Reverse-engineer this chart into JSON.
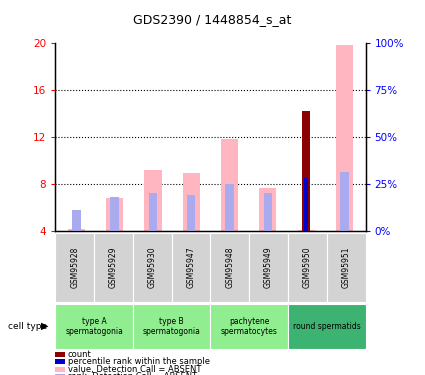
{
  "title": "GDS2390 / 1448854_s_at",
  "samples": [
    "GSM95928",
    "GSM95929",
    "GSM95930",
    "GSM95947",
    "GSM95948",
    "GSM95949",
    "GSM95950",
    "GSM95951"
  ],
  "absent_value_bars": [
    4.1,
    6.8,
    9.2,
    8.9,
    11.8,
    7.6,
    4.05,
    19.8
  ],
  "absent_rank_bars": [
    5.8,
    6.9,
    7.2,
    7.0,
    8.0,
    7.2,
    4.05,
    9.0
  ],
  "count_bars": [
    0.0,
    0.0,
    0.0,
    0.0,
    0.0,
    0.0,
    14.2,
    0.0
  ],
  "percentile_bars": [
    0.0,
    0.0,
    0.0,
    0.0,
    0.0,
    0.0,
    8.5,
    0.0
  ],
  "ylim_left": [
    4,
    20
  ],
  "ylim_right": [
    0,
    100
  ],
  "yticks_left": [
    4,
    8,
    12,
    16,
    20
  ],
  "yticks_right": [
    0,
    25,
    50,
    75,
    100
  ],
  "ytick_labels_right": [
    "0%",
    "25%",
    "50%",
    "75%",
    "100%"
  ],
  "absent_value_color": "#FFB6C1",
  "absent_rank_color": "#AAAAEE",
  "count_color": "#8B0000",
  "percentile_color": "#0000CC",
  "sample_bg_color": "#D3D3D3",
  "cell_type_groups": [
    {
      "label": "type A\nspermatogonia",
      "start": 0,
      "end": 2,
      "color": "#90EE90"
    },
    {
      "label": "type B\nspermatogonia",
      "start": 2,
      "end": 4,
      "color": "#90EE90"
    },
    {
      "label": "pachytene\nspermatocytes",
      "start": 4,
      "end": 6,
      "color": "#90EE90"
    },
    {
      "label": "round spermatids",
      "start": 6,
      "end": 8,
      "color": "#3CB371"
    }
  ],
  "legend_items": [
    {
      "label": "count",
      "color": "#8B0000"
    },
    {
      "label": "percentile rank within the sample",
      "color": "#0000CC"
    },
    {
      "label": "value, Detection Call = ABSENT",
      "color": "#FFB6C1"
    },
    {
      "label": "rank, Detection Call = ABSENT",
      "color": "#AAAAEE"
    }
  ]
}
